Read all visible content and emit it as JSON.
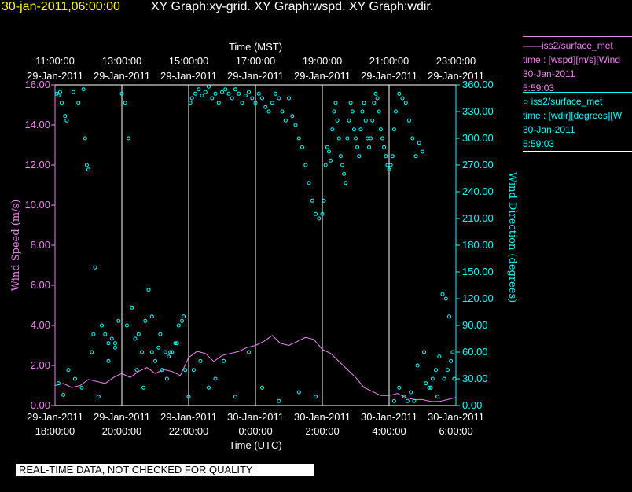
{
  "header": {
    "timestamp": "30-jan-2011,06:00:00",
    "graphs": "XY Graph:xy-grid.  XY Graph:wspd.  XY Graph:wdir."
  },
  "colors": {
    "wspd": "#ee82ee",
    "wdir": "#00ffff",
    "timestamp": "#ffff00",
    "grid": "#ffffff"
  },
  "legend": {
    "wspd": {
      "title": "——iss2/surface_met",
      "line1": "time : [wspd][m/s][Wind",
      "line2": "30-Jan-2011",
      "line3": "5:59:03"
    },
    "wdir": {
      "title": "○  iss2/surface_met",
      "line1": "time : [wdir][degrees][W",
      "line2": "30-Jan-2011",
      "line3": "5:59:03"
    }
  },
  "banner": "REAL-TIME DATA, NOT CHECKED FOR QUALITY",
  "chart_data": {
    "type": "line",
    "top_axis_title": "Time (MST)",
    "bottom_axis_title": "Time (UTC)",
    "ylabel_left": "Wind Speed (m/s)",
    "ylabel_right": "Wind Direction (degrees)",
    "ylim_left": [
      0,
      16
    ],
    "ylim_right": [
      0,
      360
    ],
    "x_hours_range": [
      0,
      12
    ],
    "grid": "vertical every 2 hours",
    "left_ticks": [
      "0.00",
      "2.00",
      "4.00",
      "6.00",
      "8.00",
      "10.00",
      "12.00",
      "14.00",
      "16.00"
    ],
    "right_ticks": [
      "0.00",
      "30.00",
      "60.00",
      "90.00",
      "120.00",
      "150.00",
      "180.00",
      "210.00",
      "240.00",
      "270.00",
      "300.00",
      "330.00",
      "360.00"
    ],
    "top_ticks": [
      {
        "time": "11:00:00",
        "date": "29-Jan-2011"
      },
      {
        "time": "13:00:00",
        "date": "29-Jan-2011"
      },
      {
        "time": "15:00:00",
        "date": "29-Jan-2011"
      },
      {
        "time": "17:00:00",
        "date": "29-Jan-2011"
      },
      {
        "time": "19:00:00",
        "date": "29-Jan-2011"
      },
      {
        "time": "21:00:00",
        "date": "29-Jan-2011"
      },
      {
        "time": "23:00:00",
        "date": "29-Jan-2011"
      }
    ],
    "bottom_ticks": [
      {
        "date": "29-Jan-2011",
        "time": "18:00:00"
      },
      {
        "date": "29-Jan-2011",
        "time": "20:00:00"
      },
      {
        "date": "29-Jan-2011",
        "time": "22:00:00"
      },
      {
        "date": "30-Jan-2011",
        "time": "0:00:00"
      },
      {
        "date": "30-Jan-2011",
        "time": "2:00:00"
      },
      {
        "date": "30-Jan-2011",
        "time": "4:00:00"
      },
      {
        "date": "30-Jan-2011",
        "time": "6:00:00"
      }
    ],
    "series": [
      {
        "name": "iss2/surface_met wspd",
        "x_hours": [
          0,
          0.25,
          0.5,
          0.75,
          1,
          1.25,
          1.5,
          1.75,
          2,
          2.25,
          2.5,
          2.75,
          3,
          3.25,
          3.5,
          3.75,
          4,
          4.25,
          4.5,
          4.75,
          5,
          5.25,
          5.5,
          5.75,
          6,
          6.25,
          6.5,
          6.75,
          7,
          7.25,
          7.5,
          7.75,
          8,
          8.25,
          8.5,
          8.75,
          9,
          9.25,
          9.5,
          9.75,
          10,
          10.25,
          10.5,
          10.75,
          11,
          11.25,
          11.5,
          11.75,
          12
        ],
        "values": [
          1.0,
          1.1,
          0.9,
          1.0,
          1.3,
          1.2,
          1.1,
          1.4,
          1.6,
          1.4,
          1.7,
          1.9,
          1.6,
          1.8,
          1.7,
          1.5,
          2.4,
          2.7,
          2.6,
          2.2,
          2.5,
          2.6,
          2.7,
          2.9,
          3.0,
          3.2,
          3.5,
          3.1,
          3.0,
          3.2,
          3.4,
          3.3,
          2.8,
          2.6,
          2.2,
          1.8,
          1.4,
          0.9,
          0.7,
          0.5,
          0.5,
          0.6,
          0.4,
          0.3,
          0.3,
          0.2,
          0.2,
          0.3,
          0.4
        ]
      },
      {
        "name": "iss2/surface_met wdir",
        "x_hours": [
          0.05,
          0.1,
          0.15,
          0.2,
          0.3,
          0.35,
          0.55,
          0.7,
          0.85,
          0.9,
          0.95,
          1.0,
          1.1,
          1.15,
          1.2,
          1.4,
          1.5,
          1.6,
          1.7,
          1.8,
          1.9,
          2.0,
          2.1,
          2.2,
          2.3,
          2.4,
          2.5,
          2.6,
          2.7,
          2.8,
          2.9,
          3.0,
          3.1,
          3.2,
          3.3,
          3.4,
          3.5,
          3.6,
          3.7,
          3.8,
          3.9,
          4.0,
          4.05,
          4.1,
          4.2,
          4.3,
          4.4,
          4.5,
          4.6,
          4.7,
          4.8,
          4.9,
          5.0,
          5.1,
          5.2,
          5.3,
          5.4,
          5.5,
          5.6,
          5.7,
          5.8,
          5.9,
          6.0,
          6.1,
          6.2,
          6.3,
          6.4,
          6.5,
          6.6,
          6.7,
          6.8,
          6.9,
          7.0,
          7.1,
          7.2,
          7.3,
          7.4,
          7.5,
          7.6,
          7.7,
          7.8,
          7.9,
          8.0,
          8.05,
          8.1,
          8.15,
          8.2,
          8.25,
          8.3,
          8.35,
          8.4,
          8.45,
          8.5,
          8.55,
          8.6,
          8.65,
          8.7,
          8.75,
          8.8,
          8.85,
          8.9,
          8.95,
          9.0,
          9.05,
          9.1,
          9.15,
          9.2,
          9.25,
          9.3,
          9.35,
          9.4,
          9.45,
          9.5,
          9.55,
          9.6,
          9.65,
          9.7,
          9.75,
          9.8,
          9.85,
          9.9,
          9.95,
          10.0,
          10.05,
          10.1,
          10.15,
          10.2,
          10.3,
          10.4,
          10.5,
          10.6,
          10.7,
          10.8,
          10.9,
          11.0,
          11.1,
          11.2,
          11.3,
          11.4,
          11.5,
          11.6,
          11.7,
          11.8,
          11.9,
          11.95,
          0.1,
          0.25,
          0.4,
          0.6,
          0.8,
          1.3,
          1.6,
          1.8,
          2.15,
          2.45,
          2.65,
          2.9,
          3.15,
          3.35,
          3.45,
          3.65,
          3.85,
          4.15,
          4.35,
          4.6,
          4.8,
          5.05,
          5.4,
          5.8,
          6.2,
          6.7,
          7.3,
          7.8,
          10.15,
          10.3,
          10.45,
          10.55,
          10.65,
          10.75,
          10.85,
          11.05,
          11.25,
          11.45,
          11.65,
          11.75,
          11.85
        ],
        "values": [
          350,
          348,
          352,
          340,
          325,
          320,
          352,
          340,
          355,
          300,
          270,
          265,
          60,
          80,
          155,
          90,
          80,
          70,
          75,
          65,
          95,
          350,
          340,
          300,
          110,
          75,
          80,
          60,
          95,
          130,
          100,
          50,
          65,
          40,
          60,
          55,
          60,
          70,
          90,
          95,
          40,
          10,
          340,
          345,
          350,
          355,
          348,
          352,
          358,
          345,
          350,
          340,
          352,
          355,
          350,
          345,
          355,
          350,
          340,
          348,
          352,
          345,
          340,
          350,
          345,
          335,
          330,
          340,
          350,
          345,
          330,
          320,
          345,
          325,
          315,
          300,
          290,
          270,
          250,
          230,
          215,
          210,
          215,
          230,
          270,
          290,
          285,
          275,
          310,
          330,
          340,
          320,
          300,
          280,
          270,
          260,
          250,
          300,
          320,
          340,
          330,
          310,
          300,
          290,
          280,
          310,
          330,
          340,
          320,
          300,
          290,
          300,
          320,
          340,
          350,
          345,
          330,
          310,
          300,
          290,
          280,
          270,
          265,
          270,
          280,
          310,
          330,
          350,
          345,
          340,
          320,
          300,
          280,
          295,
          285,
          25,
          20,
          30,
          40,
          55,
          125,
          120,
          100,
          60,
          30,
          25,
          12,
          40,
          30,
          20,
          10,
          50,
          70,
          90,
          40,
          20,
          60,
          80,
          30,
          60,
          70,
          100,
          40,
          50,
          20,
          30,
          50,
          10,
          60,
          20,
          5,
          15,
          10,
          5,
          20,
          10,
          5,
          15,
          5,
          45,
          60,
          20,
          10,
          30,
          40,
          50
        ]
      }
    ]
  }
}
